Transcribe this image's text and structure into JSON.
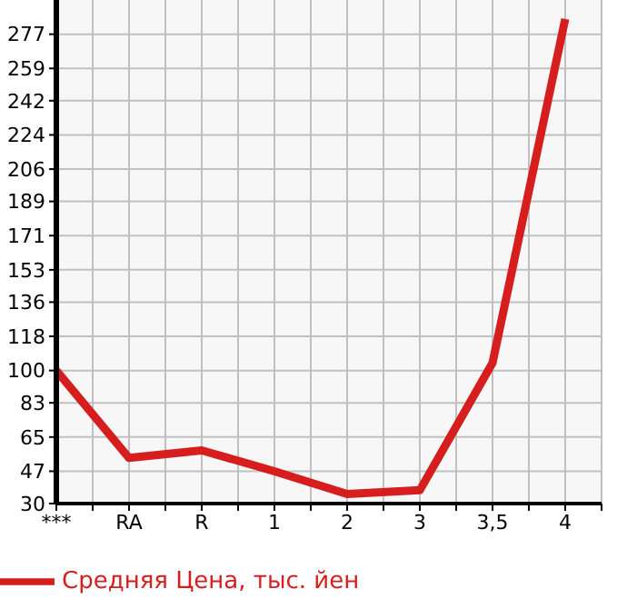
{
  "chart_data": {
    "type": "line",
    "categories": [
      "***",
      "RA",
      "R",
      "1",
      "2",
      "3",
      "3,5",
      "4"
    ],
    "series": [
      {
        "name": "Средняя Цена, тыс. йен",
        "color": "#d61e1e",
        "values": [
          100,
          54,
          58,
          47,
          35,
          37,
          104,
          285
        ]
      }
    ],
    "ylim": [
      30,
      295
    ],
    "yticks": [
      30,
      47,
      65,
      83,
      100,
      118,
      136,
      153,
      171,
      189,
      206,
      224,
      242,
      259,
      277
    ],
    "grid": true,
    "legend": "bottom",
    "marker": "none",
    "line_style": "solid"
  }
}
